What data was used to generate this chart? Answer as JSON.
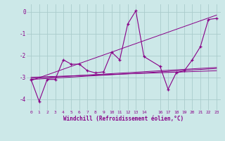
{
  "background_color": "#cce8e8",
  "grid_color": "#aacccc",
  "line_color": "#880088",
  "xlabel": "Windchill (Refroidissement éolien,°C)",
  "xlim": [
    -0.5,
    23.5
  ],
  "ylim": [
    -4.5,
    0.35
  ],
  "yticks": [
    0,
    -1,
    -2,
    -3,
    -4
  ],
  "xticks": [
    0,
    1,
    2,
    3,
    4,
    5,
    6,
    7,
    8,
    9,
    10,
    11,
    12,
    13,
    14,
    16,
    17,
    18,
    19,
    20,
    21,
    22,
    23
  ],
  "series_x": [
    0,
    1,
    2,
    3,
    4,
    5,
    6,
    7,
    8,
    9,
    10,
    11,
    12,
    13,
    14,
    16,
    17,
    18,
    19,
    20,
    21,
    22,
    23
  ],
  "series_y": [
    -3.1,
    -4.1,
    -3.1,
    -3.1,
    -2.2,
    -2.4,
    -2.4,
    -2.7,
    -2.8,
    -2.75,
    -1.85,
    -2.2,
    -0.55,
    0.05,
    -2.05,
    -2.5,
    -3.55,
    -2.8,
    -2.7,
    -2.2,
    -1.6,
    -0.35,
    -0.3
  ],
  "reg_lines": [
    {
      "x": [
        0,
        23
      ],
      "y": [
        -3.15,
        -0.15
      ]
    },
    {
      "x": [
        0,
        23
      ],
      "y": [
        -3.05,
        -2.55
      ]
    },
    {
      "x": [
        0,
        23
      ],
      "y": [
        -3.1,
        -2.6
      ]
    },
    {
      "x": [
        0,
        23
      ],
      "y": [
        -3.0,
        -2.7
      ]
    }
  ],
  "figsize": [
    3.2,
    2.0
  ],
  "dpi": 100
}
